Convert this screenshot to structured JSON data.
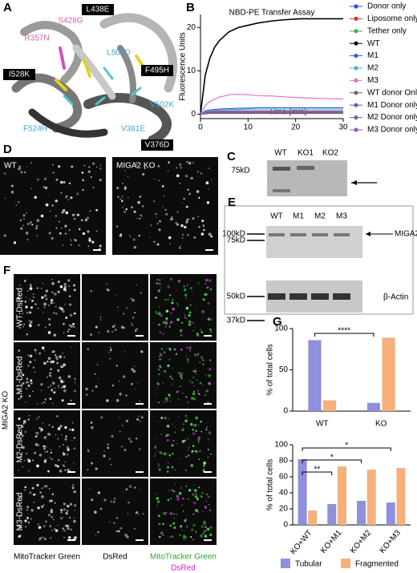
{
  "panels": {
    "A": {
      "letter": "A",
      "labels": [
        "S428G",
        "R357N",
        "L438E",
        "L506D",
        "F495H",
        "I528K",
        "V502K",
        "V381E",
        "F524H",
        "V376D"
      ]
    },
    "C": {
      "letter": "C",
      "lanes": [
        "WT",
        "KO1",
        "KO2"
      ],
      "marker": "75kD"
    },
    "D": {
      "letter": "D",
      "images": [
        "WT",
        "MIGA2 KO"
      ]
    },
    "E": {
      "letter": "E",
      "lanes": [
        "WT",
        "M1",
        "M2",
        "M3"
      ],
      "markers": [
        "100kD",
        "75kD",
        "50kD",
        "37kD"
      ],
      "bands": [
        "MIGA2",
        "β-Actin"
      ]
    },
    "F": {
      "letter": "F",
      "group": "MIGA2 KO",
      "rows": [
        "WT-DsRed",
        "M1-DsRed",
        "M2-DsRed",
        "M3-DsRed"
      ],
      "columns": [
        "MitoTracker Green",
        "DsRed"
      ],
      "merge": [
        "MitoTracker Green",
        "DsRed"
      ]
    }
  },
  "chart_data": [
    {
      "type": "line",
      "panel": "B",
      "title": "NBD-PE Transfer Assay",
      "x_label": "Time (min)",
      "y_label": "Fluorescence Units",
      "x": [
        0,
        1,
        2,
        3,
        4,
        5,
        6,
        8,
        10,
        12,
        15,
        18,
        21,
        24,
        27,
        30
      ],
      "xlim": [
        0,
        30
      ],
      "ylim": [
        -1,
        23
      ],
      "xticks": [
        0,
        10,
        20,
        30
      ],
      "yticks": [
        0,
        10,
        20
      ],
      "series": [
        {
          "name": "Donor only",
          "color": "#2b4fd8",
          "values": [
            0,
            0.2,
            0.3,
            0.3,
            0.3,
            0.3,
            0.3,
            0.3,
            0.3,
            0.3,
            0.3,
            0.3,
            0.3,
            0.3,
            0.3,
            0.3
          ]
        },
        {
          "name": "Liposome only",
          "color": "#e0302a",
          "values": [
            0,
            0.1,
            0.2,
            0.2,
            0.2,
            0.2,
            0.2,
            0.2,
            0.2,
            0.2,
            0.2,
            0.2,
            0.2,
            0.2,
            0.2,
            0.2
          ]
        },
        {
          "name": "Tether only",
          "color": "#3cb043",
          "values": [
            0,
            0.3,
            0.4,
            0.5,
            0.5,
            0.5,
            0.5,
            0.5,
            0.5,
            0.5,
            0.5,
            0.5,
            0.5,
            0.5,
            0.5,
            0.5
          ]
        },
        {
          "name": "WT",
          "color": "#000000",
          "values": [
            0,
            9,
            13,
            15.5,
            17,
            18,
            19,
            20,
            20.5,
            21,
            21.5,
            21.8,
            22,
            22,
            22,
            22
          ]
        },
        {
          "name": "M1",
          "color": "#3b5bdb",
          "values": [
            0,
            0.8,
            1,
            1.1,
            1.2,
            1.3,
            1.3,
            1.4,
            1.4,
            1.5,
            1.5,
            1.5,
            1.5,
            1.5,
            1.5,
            1.5
          ]
        },
        {
          "name": "M2",
          "color": "#3fb6e6",
          "values": [
            0,
            0.6,
            0.8,
            0.9,
            1,
            1,
            1.1,
            1.1,
            1.2,
            1.2,
            1.2,
            1.2,
            1.2,
            1.2,
            1.2,
            1.2
          ]
        },
        {
          "name": "M3",
          "color": "#e36fc7",
          "values": [
            0,
            2,
            3,
            3.5,
            4,
            4.2,
            4.5,
            4.6,
            4.5,
            4.3,
            4.2,
            4,
            3.8,
            3.7,
            3.6,
            3.5
          ]
        },
        {
          "name": "WT donor Only",
          "color": "#6b6b6b",
          "values": [
            0,
            0.4,
            0.5,
            0.6,
            0.6,
            0.6,
            0.6,
            0.6,
            0.6,
            0.6,
            0.6,
            0.6,
            0.6,
            0.6,
            0.6,
            0.6
          ]
        },
        {
          "name": "M1 Donor only",
          "color": "#7a4fc6",
          "values": [
            0,
            0.3,
            0.4,
            0.4,
            0.4,
            0.4,
            0.4,
            0.4,
            0.4,
            0.4,
            0.4,
            0.4,
            0.4,
            0.4,
            0.4,
            0.4
          ]
        },
        {
          "name": "M2 Donor only",
          "color": "#5a6fa8",
          "values": [
            0,
            0.2,
            0.3,
            0.3,
            0.3,
            0.3,
            0.3,
            0.3,
            0.3,
            0.3,
            0.3,
            0.3,
            0.3,
            0.3,
            0.3,
            0.3
          ]
        },
        {
          "name": "M3 Donor only",
          "color": "#9b5fb5",
          "values": [
            0,
            0.5,
            0.7,
            0.8,
            0.8,
            0.8,
            0.8,
            0.8,
            0.8,
            0.8,
            0.8,
            0.8,
            0.8,
            0.8,
            0.8,
            0.8
          ]
        }
      ]
    },
    {
      "type": "bar",
      "panel": "G",
      "y_label": "% of total cells",
      "categories": [
        "WT",
        "KO"
      ],
      "series": [
        {
          "name": "Tubular",
          "color": "#8f8fdc",
          "values": [
            86,
            10
          ]
        },
        {
          "name": "Fragmented",
          "color": "#f5b07c",
          "values": [
            13,
            89
          ]
        }
      ],
      "ylim": [
        0,
        100
      ],
      "yticks": [
        0,
        50,
        100
      ],
      "annotations": [
        "****"
      ]
    },
    {
      "type": "bar",
      "y_label": "% of total cells",
      "categories": [
        "KO+WT",
        "KO+M1",
        "KO+M2",
        "KO+M3"
      ],
      "series": [
        {
          "name": "Tubular",
          "color": "#8f8fdc",
          "values": [
            82,
            26,
            30,
            28
          ]
        },
        {
          "name": "Fragmented",
          "color": "#f5b07c",
          "values": [
            18,
            73,
            69,
            71
          ]
        }
      ],
      "ylim": [
        0,
        100
      ],
      "yticks": [
        0,
        20,
        40,
        60,
        80,
        100
      ],
      "annotations": [
        "**",
        "*",
        "*"
      ],
      "legend": "bottom"
    }
  ]
}
